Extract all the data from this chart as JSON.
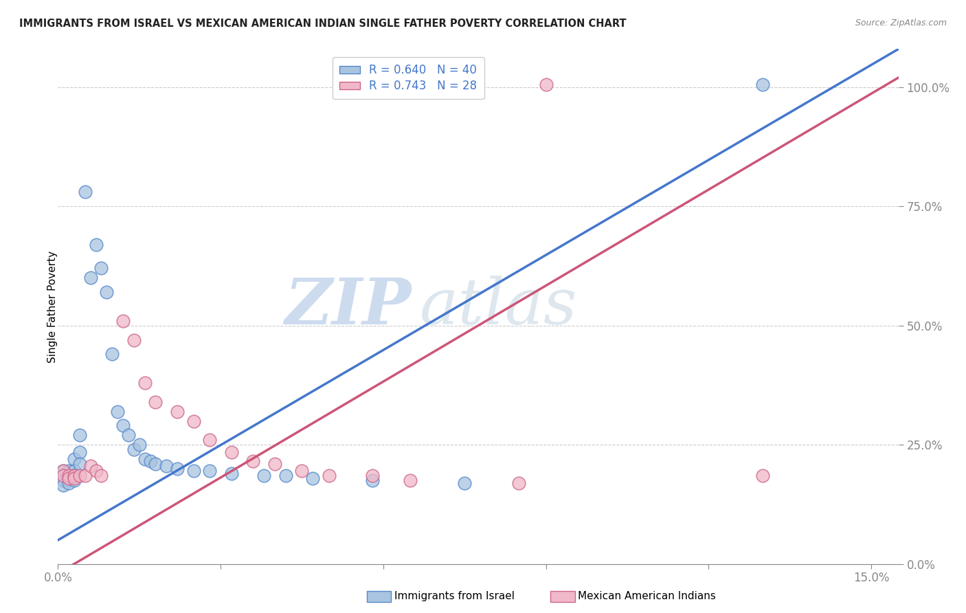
{
  "title": "IMMIGRANTS FROM ISRAEL VS MEXICAN AMERICAN INDIAN SINGLE FATHER POVERTY CORRELATION CHART",
  "source": "Source: ZipAtlas.com",
  "ylabel": "Single Father Poverty",
  "legend_blue_label": "Immigrants from Israel",
  "legend_pink_label": "Mexican American Indians",
  "legend_blue_text": "R = 0.640   N = 40",
  "legend_pink_text": "R = 0.743   N = 28",
  "watermark_zip": "ZIP",
  "watermark_atlas": "atlas",
  "blue_fill": "#a8c4e0",
  "blue_edge": "#5588cc",
  "pink_fill": "#f0b8c8",
  "pink_edge": "#cc6688",
  "blue_line_color": "#4477cc",
  "pink_line_color": "#cc5577",
  "blue_scatter": [
    [
      0.001,
      0.195
    ],
    [
      0.001,
      0.185
    ],
    [
      0.001,
      0.175
    ],
    [
      0.001,
      0.165
    ],
    [
      0.002,
      0.195
    ],
    [
      0.002,
      0.185
    ],
    [
      0.002,
      0.18
    ],
    [
      0.002,
      0.17
    ],
    [
      0.003,
      0.22
    ],
    [
      0.003,
      0.195
    ],
    [
      0.003,
      0.185
    ],
    [
      0.003,
      0.175
    ],
    [
      0.004,
      0.27
    ],
    [
      0.004,
      0.235
    ],
    [
      0.004,
      0.21
    ],
    [
      0.005,
      0.78
    ],
    [
      0.006,
      0.6
    ],
    [
      0.007,
      0.67
    ],
    [
      0.008,
      0.62
    ],
    [
      0.009,
      0.57
    ],
    [
      0.01,
      0.44
    ],
    [
      0.011,
      0.32
    ],
    [
      0.012,
      0.29
    ],
    [
      0.013,
      0.27
    ],
    [
      0.014,
      0.24
    ],
    [
      0.015,
      0.25
    ],
    [
      0.016,
      0.22
    ],
    [
      0.017,
      0.215
    ],
    [
      0.018,
      0.21
    ],
    [
      0.02,
      0.205
    ],
    [
      0.022,
      0.2
    ],
    [
      0.025,
      0.195
    ],
    [
      0.028,
      0.195
    ],
    [
      0.032,
      0.19
    ],
    [
      0.038,
      0.185
    ],
    [
      0.042,
      0.185
    ],
    [
      0.047,
      0.18
    ],
    [
      0.058,
      0.175
    ],
    [
      0.075,
      0.17
    ],
    [
      0.13,
      1.005
    ]
  ],
  "pink_scatter": [
    [
      0.001,
      0.195
    ],
    [
      0.001,
      0.185
    ],
    [
      0.002,
      0.185
    ],
    [
      0.002,
      0.18
    ],
    [
      0.003,
      0.185
    ],
    [
      0.003,
      0.18
    ],
    [
      0.004,
      0.185
    ],
    [
      0.005,
      0.185
    ],
    [
      0.006,
      0.205
    ],
    [
      0.007,
      0.195
    ],
    [
      0.008,
      0.185
    ],
    [
      0.012,
      0.51
    ],
    [
      0.014,
      0.47
    ],
    [
      0.016,
      0.38
    ],
    [
      0.018,
      0.34
    ],
    [
      0.022,
      0.32
    ],
    [
      0.025,
      0.3
    ],
    [
      0.028,
      0.26
    ],
    [
      0.032,
      0.235
    ],
    [
      0.036,
      0.215
    ],
    [
      0.04,
      0.21
    ],
    [
      0.045,
      0.195
    ],
    [
      0.05,
      0.185
    ],
    [
      0.058,
      0.185
    ],
    [
      0.065,
      0.175
    ],
    [
      0.085,
      0.17
    ],
    [
      0.09,
      1.005
    ],
    [
      0.13,
      0.185
    ]
  ],
  "xlim": [
    0.0,
    0.155
  ],
  "ylim": [
    0.0,
    1.08
  ],
  "x_ticks": [
    0.0,
    0.03,
    0.06,
    0.09,
    0.12,
    0.15
  ],
  "y_ticks": [
    0.0,
    0.25,
    0.5,
    0.75,
    1.0
  ],
  "blue_line_endpoints": [
    [
      0.0,
      0.05
    ],
    [
      0.155,
      1.08
    ]
  ],
  "pink_line_endpoints": [
    [
      0.0,
      -0.02
    ],
    [
      0.155,
      1.02
    ]
  ]
}
